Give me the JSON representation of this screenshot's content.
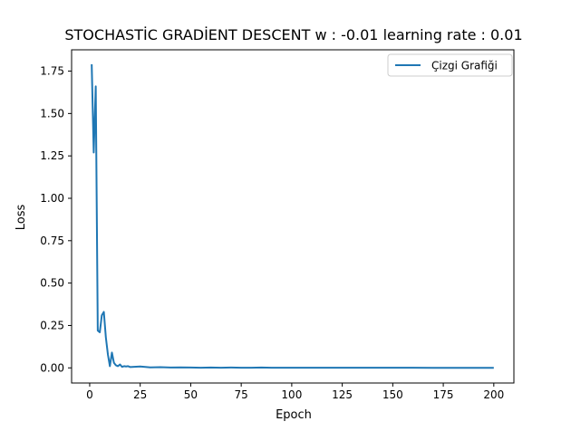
{
  "chart_data": {
    "type": "line",
    "title": "STOCHASTİC GRADİENT DESCENT  w : -0.01  learning rate : 0.01",
    "xlabel": "Epoch",
    "ylabel": "Loss",
    "xlim": [
      -8.95,
      209.95
    ],
    "ylim": [
      -0.0893,
      1.8756
    ],
    "xticks": [
      0,
      25,
      50,
      75,
      100,
      125,
      150,
      175,
      200
    ],
    "xtick_labels": [
      "0",
      "25",
      "50",
      "75",
      "100",
      "125",
      "150",
      "175",
      "200"
    ],
    "yticks": [
      0.0,
      0.25,
      0.5,
      0.75,
      1.0,
      1.25,
      1.5,
      1.75
    ],
    "ytick_labels": [
      "0.00",
      "0.25",
      "0.50",
      "0.75",
      "1.00",
      "1.25",
      "1.50",
      "1.75"
    ],
    "grid": false,
    "legend_position": "top-right",
    "series": [
      {
        "name": "Çizgi Grafiği",
        "color": "#1f77b4",
        "x": [
          1,
          2,
          3,
          4,
          5,
          6,
          7,
          8,
          9,
          10,
          11,
          12,
          13,
          14,
          15,
          16,
          17,
          18,
          19,
          20,
          25,
          30,
          35,
          40,
          45,
          50,
          55,
          60,
          65,
          70,
          75,
          80,
          85,
          90,
          95,
          100,
          110,
          120,
          130,
          140,
          150,
          160,
          170,
          180,
          190,
          200
        ],
        "values": [
          1.79,
          1.27,
          1.66,
          0.22,
          0.21,
          0.31,
          0.33,
          0.18,
          0.08,
          0.01,
          0.09,
          0.03,
          0.015,
          0.01,
          0.02,
          0.006,
          0.01,
          0.008,
          0.01,
          0.005,
          0.008,
          0.003,
          0.004,
          0.002,
          0.003,
          0.002,
          0.001,
          0.002,
          0.001,
          0.002,
          0.001,
          0.001,
          0.002,
          0.001,
          0.001,
          0.001,
          0.001,
          0.0005,
          0.001,
          0.0005,
          0.0005,
          0.0005,
          0.0004,
          0.0003,
          0.0003,
          0.0003
        ]
      }
    ]
  }
}
